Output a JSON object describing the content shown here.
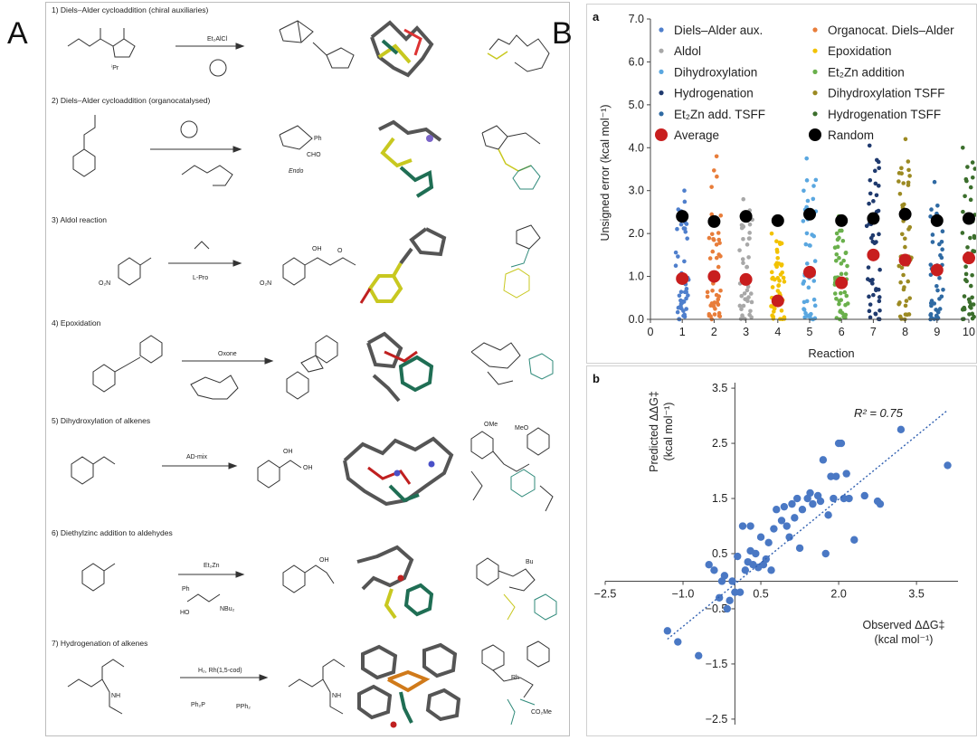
{
  "panel_a": {
    "label": "A",
    "reactions": [
      {
        "title": "1) Diels–Alder cycloaddition (chiral auxiliaries)",
        "reagent": "Et₂AlCl",
        "substituent": "ⁱPr"
      },
      {
        "title": "2) Diels–Alder cycloaddition (organocatalysed)",
        "reagent": "",
        "product_label": "Endo",
        "groups": [
          "Ph",
          "CHO"
        ]
      },
      {
        "title": "3) Aldol reaction",
        "reagent": "L-Pro",
        "groups": [
          "O₂N",
          "OH",
          "O"
        ]
      },
      {
        "title": "4) Epoxidation",
        "reagent": "Oxone"
      },
      {
        "title": "5) Dihydroxylation of alkenes",
        "reagent": "AD-mix",
        "groups": [
          "OH",
          "OMe",
          "MeO"
        ]
      },
      {
        "title": "6) Diethylzinc addition to aldehydes",
        "reagent": "Et₂Zn",
        "groups": [
          "Ph",
          "HO",
          "NBu₂",
          "OH",
          "Bu"
        ]
      },
      {
        "title": "7) Hydrogenation of alkenes",
        "reagent": "H₂, Rh(1,5-cod)",
        "groups": [
          "NH",
          "Ph₂P",
          "PPh₂",
          "CO₂Me",
          "Rh"
        ]
      }
    ]
  },
  "panel_b": {
    "label": "B",
    "chart_data": [
      {
        "type": "scatter",
        "panel": "a",
        "xlabel": "Reaction",
        "ylabel": "Unsigned error (kcal mol⁻¹)",
        "xlim": [
          0,
          10
        ],
        "ylim": [
          0,
          7
        ],
        "xticks": [
          "0",
          "1",
          "2",
          "3",
          "4",
          "5",
          "6",
          "7",
          "8",
          "9",
          "10"
        ],
        "yticks": [
          "0.0",
          "1.0",
          "2.0",
          "3.0",
          "4.0",
          "5.0",
          "6.0",
          "7.0"
        ],
        "legend_position": "top",
        "legend": [
          {
            "name": "Diels–Alder aux.",
            "color": "#4f7fcc"
          },
          {
            "name": "Organocat. Diels–Alder",
            "color": "#e87d3a"
          },
          {
            "name": "Aldol",
            "color": "#a8a8a8"
          },
          {
            "name": "Epoxidation",
            "color": "#f2c200"
          },
          {
            "name": "Dihydroxylation",
            "color": "#5aa7e0"
          },
          {
            "name": "Et₂Zn addition",
            "color": "#6ab04c"
          },
          {
            "name": "Hydrogenation",
            "color": "#1f3a6e"
          },
          {
            "name": "Dihydroxylation TSFF",
            "color": "#9c8a22"
          },
          {
            "name": "Et₂Zn add. TSFF",
            "color": "#2f6aa3"
          },
          {
            "name": "Hydrogenation TSFF",
            "color": "#3b6e2c"
          },
          {
            "name": "Average",
            "color": "#c81e1e"
          },
          {
            "name": "Random",
            "color": "#000000"
          }
        ],
        "series_colors": [
          "#4f7fcc",
          "#e87d3a",
          "#a8a8a8",
          "#f2c200",
          "#5aa7e0",
          "#6ab04c",
          "#1f3a6e",
          "#9c8a22",
          "#2f6aa3",
          "#3b6e2c"
        ],
        "series_max": [
          3.0,
          3.8,
          2.8,
          2.0,
          3.75,
          2.4,
          4.05,
          4.2,
          3.2,
          4.0
        ],
        "average": [
          0.95,
          1.0,
          0.93,
          0.43,
          1.1,
          0.85,
          1.5,
          1.38,
          1.15,
          1.43
        ],
        "random": [
          2.4,
          2.28,
          2.4,
          2.3,
          2.45,
          2.3,
          2.35,
          2.45,
          2.3,
          2.35
        ]
      },
      {
        "type": "scatter",
        "panel": "b",
        "xlabel": "Observed ΔΔG‡ (kcal mol⁻¹)",
        "xlabel_line1": "Observed ΔΔG‡",
        "xlabel_line2": "(kcal mol⁻¹)",
        "ylabel_line1": "Predicted ΔΔG‡",
        "ylabel_line2": "(kcal mol⁻¹)",
        "xticks": [
          "−2.5",
          "−1.0",
          "0.5",
          "2.0",
          "3.5"
        ],
        "xtick_values": [
          -2.5,
          -1.0,
          0.5,
          2.0,
          3.5
        ],
        "extra_xtick": "0.5",
        "yticks": [
          "3.5",
          "2.5",
          "1.5",
          "0.5",
          "−0.5",
          "−1.5",
          "−2.5"
        ],
        "ytick_values": [
          3.5,
          2.5,
          1.5,
          0.5,
          -0.5,
          -1.5,
          -2.5
        ],
        "xlim": [
          -2.5,
          4.3
        ],
        "ylim": [
          -2.6,
          3.6
        ],
        "annotation": "R² = 0.75",
        "fit_line": {
          "x": [
            -1.3,
            4.1
          ],
          "y": [
            -1.05,
            3.1
          ]
        },
        "x": [
          -1.3,
          -1.1,
          -0.7,
          -0.5,
          -0.4,
          -0.3,
          -0.2,
          -0.15,
          -0.1,
          0.0,
          0.05,
          0.1,
          0.15,
          0.2,
          0.3,
          0.35,
          0.4,
          0.45,
          0.5,
          0.55,
          0.6,
          0.65,
          0.7,
          0.8,
          0.9,
          1.0,
          1.05,
          1.1,
          1.2,
          1.25,
          1.3,
          1.4,
          1.5,
          1.6,
          1.7,
          1.75,
          1.8,
          1.85,
          1.9,
          1.95,
          2.0,
          2.05,
          2.1,
          2.2,
          2.3,
          2.5,
          2.8,
          3.2,
          4.1,
          -0.25,
          0.25,
          1.45,
          0.75,
          0.95,
          1.15,
          1.65,
          2.15,
          2.75,
          0.3,
          -0.05
        ],
        "y": [
          -0.9,
          -1.1,
          -1.35,
          0.3,
          0.2,
          -0.3,
          0.1,
          -0.5,
          -0.35,
          -0.2,
          0.45,
          -0.2,
          1.0,
          0.2,
          1.0,
          0.3,
          0.5,
          0.25,
          0.8,
          0.3,
          0.4,
          0.7,
          0.2,
          1.3,
          1.1,
          1.0,
          0.8,
          1.4,
          1.5,
          0.6,
          1.3,
          1.5,
          1.4,
          1.55,
          2.2,
          0.5,
          1.2,
          1.9,
          1.5,
          1.9,
          2.5,
          2.5,
          1.5,
          1.5,
          0.75,
          1.55,
          1.4,
          2.75,
          2.1,
          0.0,
          0.35,
          1.6,
          0.95,
          1.35,
          1.15,
          1.45,
          1.95,
          1.45,
          0.55,
          0.0
        ]
      }
    ]
  }
}
